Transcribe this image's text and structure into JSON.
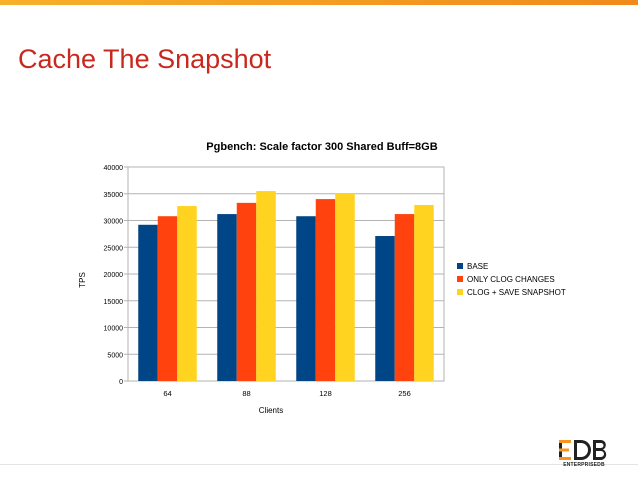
{
  "slide": {
    "title": "Cache The Snapshot"
  },
  "logo": {
    "mark_text": "EDB",
    "sub_text": "ENTERPRISEDB",
    "accent_color": "#f7941d"
  },
  "chart_data": {
    "type": "bar",
    "title": "Pgbench: Scale factor 300 Shared Buff=8GB",
    "xlabel": "Clients",
    "ylabel": "TPS",
    "categories": [
      "64",
      "88",
      "128",
      "256"
    ],
    "ylim": [
      0,
      40000
    ],
    "yticks": [
      0,
      5000,
      10000,
      15000,
      20000,
      25000,
      30000,
      35000,
      40000
    ],
    "grid": true,
    "legend_position": "right",
    "series": [
      {
        "name": "BASE",
        "color": "#004586",
        "values": [
          29200,
          31200,
          30800,
          27100
        ]
      },
      {
        "name": "ONLY CLOG CHANGES",
        "color": "#ff420e",
        "values": [
          30800,
          33300,
          34000,
          31200
        ]
      },
      {
        "name": "CLOG + SAVE SNAPSHOT",
        "color": "#ffd320",
        "values": [
          32700,
          35500,
          35000,
          32900
        ]
      }
    ]
  }
}
